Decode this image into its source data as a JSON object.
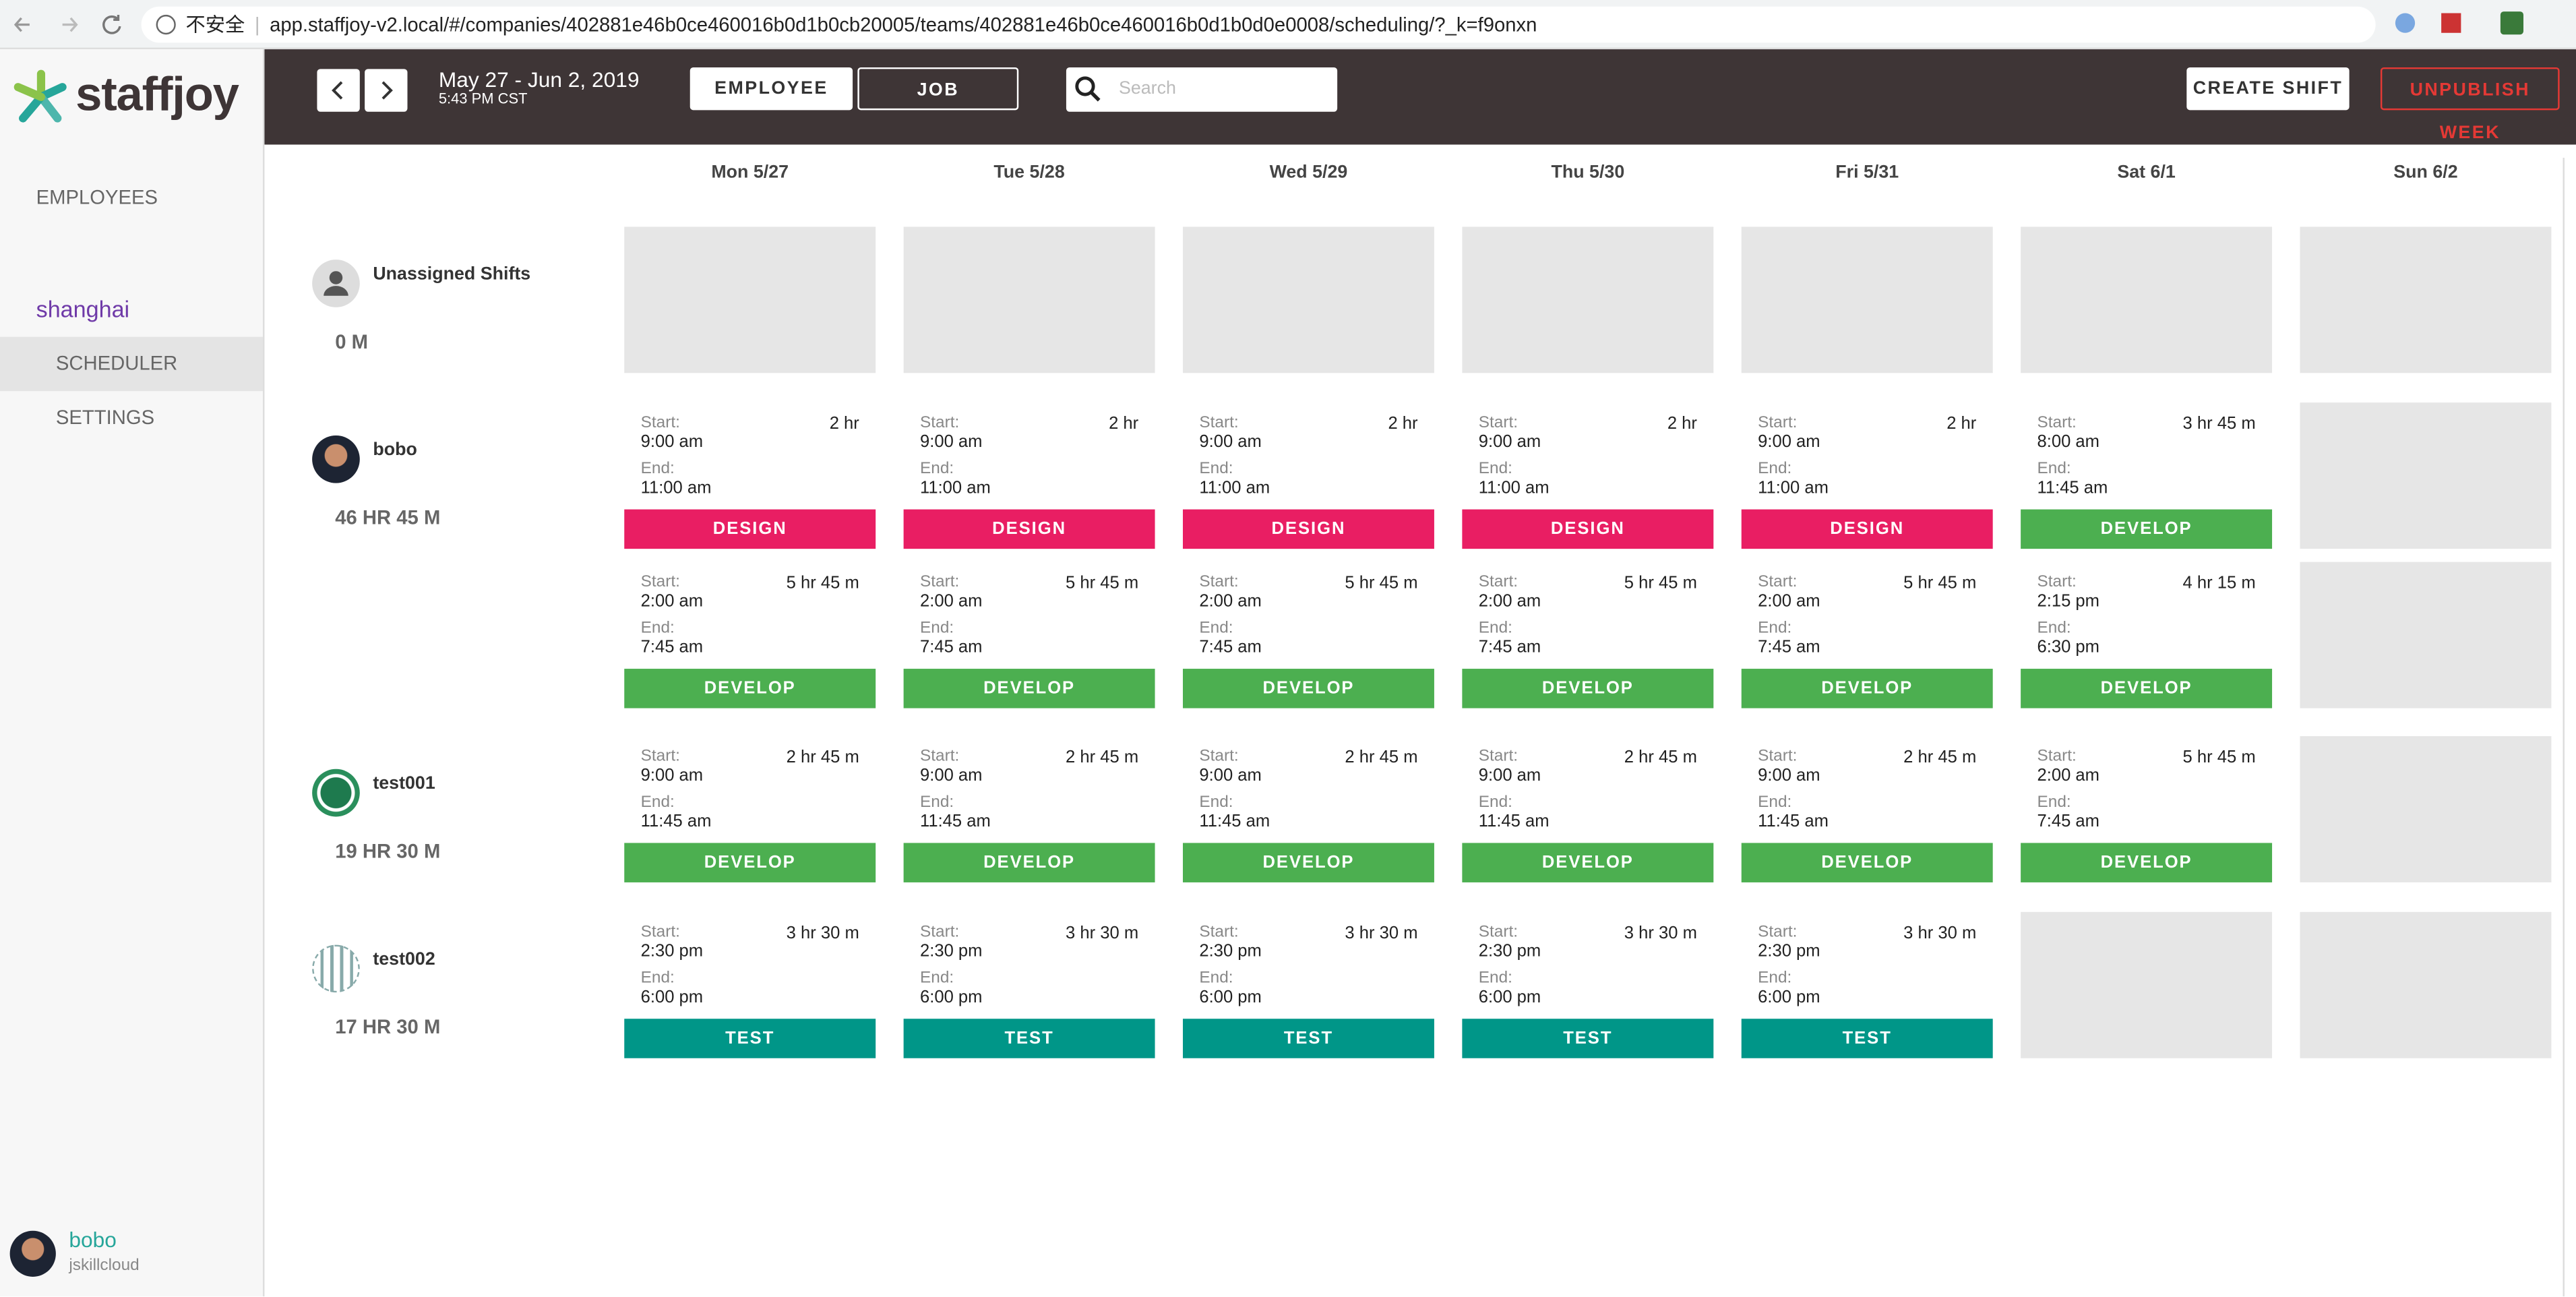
{
  "browser": {
    "security": "不安全",
    "url": "app.staffjoy-v2.local/#/companies/402881e46b0ce460016b0d1b0cb20005/teams/402881e46b0ce460016b0d1b0d0e0008/scheduling/?_k=f9onxn"
  },
  "sidebar": {
    "logo": "staffjoy",
    "employees": "EMPLOYEES",
    "team": "shanghai",
    "menu": [
      "SCHEDULER",
      "SETTINGS"
    ],
    "user": {
      "name": "bobo",
      "company": "jskillcloud"
    }
  },
  "toolbar": {
    "date_range": "May 27 - Jun 2, 2019",
    "time": "5:43 PM CST",
    "view_toggle": [
      "EMPLOYEE",
      "JOB"
    ],
    "search_placeholder": "Search",
    "create_shift": "CREATE SHIFT",
    "unpublish_week": "UNPUBLISH WEEK"
  },
  "labels": {
    "start": "Start:",
    "end": "End:"
  },
  "days": [
    "Mon 5/27",
    "Tue 5/28",
    "Wed 5/29",
    "Thu 5/30",
    "Fri 5/31",
    "Sat 6/1",
    "Sun 6/2"
  ],
  "rows": [
    {
      "name": "Unassigned Shifts",
      "hours": "0 M",
      "avatar": "unassigned",
      "lines": [
        [
          null,
          null,
          null,
          null,
          null,
          null,
          null
        ]
      ]
    },
    {
      "name": "bobo",
      "hours": "46 HR 45 M",
      "avatar": "photo",
      "lines": [
        [
          {
            "start": "9:00 am",
            "end": "11:00 am",
            "duration": "2 hr",
            "job": "DESIGN",
            "color": "#e91e63"
          },
          {
            "start": "9:00 am",
            "end": "11:00 am",
            "duration": "2 hr",
            "job": "DESIGN",
            "color": "#e91e63"
          },
          {
            "start": "9:00 am",
            "end": "11:00 am",
            "duration": "2 hr",
            "job": "DESIGN",
            "color": "#e91e63"
          },
          {
            "start": "9:00 am",
            "end": "11:00 am",
            "duration": "2 hr",
            "job": "DESIGN",
            "color": "#e91e63"
          },
          {
            "start": "9:00 am",
            "end": "11:00 am",
            "duration": "2 hr",
            "job": "DESIGN",
            "color": "#e91e63"
          },
          {
            "start": "8:00 am",
            "end": "11:45 am",
            "duration": "3 hr 45 m",
            "job": "DEVELOP",
            "color": "#4caf50"
          },
          null
        ],
        [
          {
            "start": "2:00 am",
            "end": "7:45 am",
            "duration": "5 hr 45 m",
            "job": "DEVELOP",
            "color": "#4caf50"
          },
          {
            "start": "2:00 am",
            "end": "7:45 am",
            "duration": "5 hr 45 m",
            "job": "DEVELOP",
            "color": "#4caf50"
          },
          {
            "start": "2:00 am",
            "end": "7:45 am",
            "duration": "5 hr 45 m",
            "job": "DEVELOP",
            "color": "#4caf50"
          },
          {
            "start": "2:00 am",
            "end": "7:45 am",
            "duration": "5 hr 45 m",
            "job": "DEVELOP",
            "color": "#4caf50"
          },
          {
            "start": "2:00 am",
            "end": "7:45 am",
            "duration": "5 hr 45 m",
            "job": "DEVELOP",
            "color": "#4caf50"
          },
          {
            "start": "2:15 pm",
            "end": "6:30 pm",
            "duration": "4 hr 15 m",
            "job": "DEVELOP",
            "color": "#4caf50"
          },
          null
        ]
      ]
    },
    {
      "name": "test001",
      "hours": "19 HR 30 M",
      "avatar": "pattern",
      "lines": [
        [
          {
            "start": "9:00 am",
            "end": "11:45 am",
            "duration": "2 hr 45 m",
            "job": "DEVELOP",
            "color": "#4caf50"
          },
          {
            "start": "9:00 am",
            "end": "11:45 am",
            "duration": "2 hr 45 m",
            "job": "DEVELOP",
            "color": "#4caf50"
          },
          {
            "start": "9:00 am",
            "end": "11:45 am",
            "duration": "2 hr 45 m",
            "job": "DEVELOP",
            "color": "#4caf50"
          },
          {
            "start": "9:00 am",
            "end": "11:45 am",
            "duration": "2 hr 45 m",
            "job": "DEVELOP",
            "color": "#4caf50"
          },
          {
            "start": "9:00 am",
            "end": "11:45 am",
            "duration": "2 hr 45 m",
            "job": "DEVELOP",
            "color": "#4caf50"
          },
          {
            "start": "2:00 am",
            "end": "7:45 am",
            "duration": "5 hr 45 m",
            "job": "DEVELOP",
            "color": "#4caf50"
          },
          null
        ]
      ]
    },
    {
      "name": "test002",
      "hours": "17 HR 30 M",
      "avatar": "pattern2",
      "lines": [
        [
          {
            "start": "2:30 pm",
            "end": "6:00 pm",
            "duration": "3 hr 30 m",
            "job": "TEST",
            "color": "#009688"
          },
          {
            "start": "2:30 pm",
            "end": "6:00 pm",
            "duration": "3 hr 30 m",
            "job": "TEST",
            "color": "#009688"
          },
          {
            "start": "2:30 pm",
            "end": "6:00 pm",
            "duration": "3 hr 30 m",
            "job": "TEST",
            "color": "#009688"
          },
          {
            "start": "2:30 pm",
            "end": "6:00 pm",
            "duration": "3 hr 30 m",
            "job": "TEST",
            "color": "#009688"
          },
          {
            "start": "2:30 pm",
            "end": "6:00 pm",
            "duration": "3 hr 30 m",
            "job": "TEST",
            "color": "#009688"
          },
          null,
          null
        ]
      ]
    }
  ]
}
